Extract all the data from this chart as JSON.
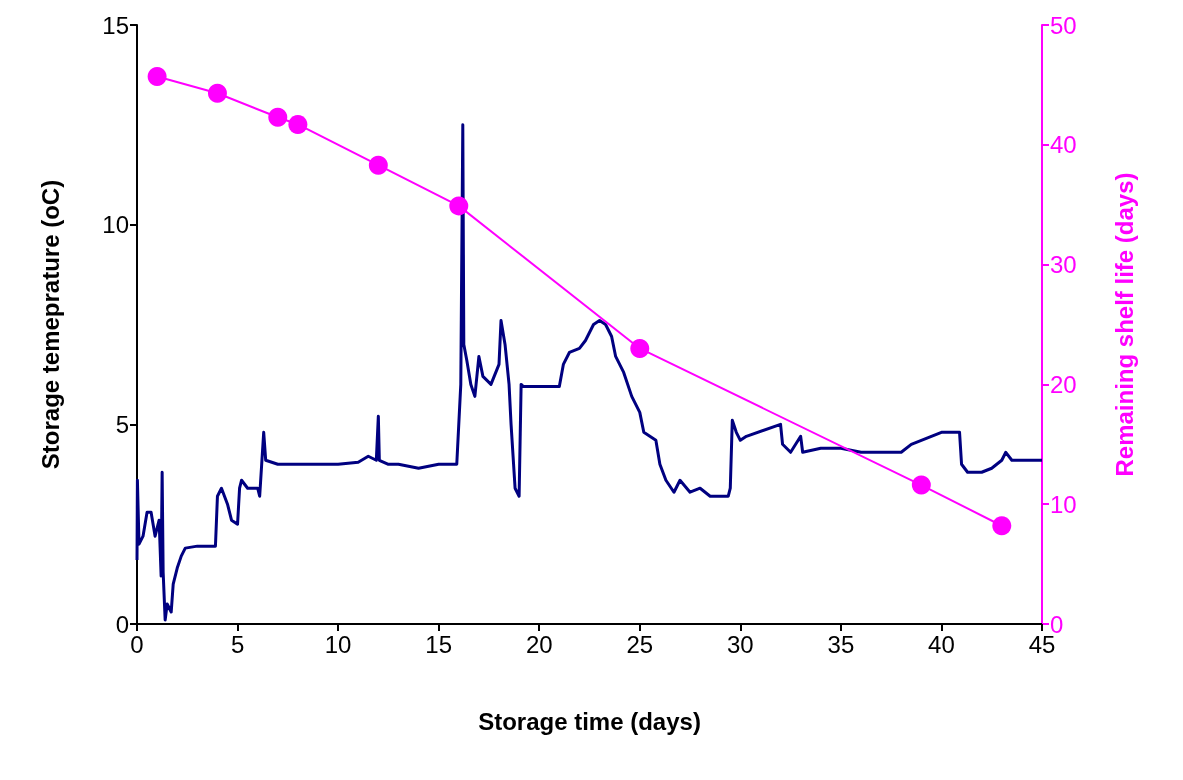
{
  "chart_data": {
    "type": "line",
    "xlabel": "Storage time (days)",
    "ylabel": "Storage temeprature (oC)",
    "y2label": "Remaining shelf life (days)",
    "xlim": [
      0,
      45
    ],
    "xticks": [
      0,
      5,
      10,
      15,
      20,
      25,
      30,
      35,
      40,
      45
    ],
    "ylim": [
      0,
      15
    ],
    "yticks": [
      0,
      5,
      10,
      15
    ],
    "y2lim": [
      0,
      50
    ],
    "y2ticks": [
      0,
      10,
      20,
      30,
      40,
      50
    ],
    "grid": false,
    "series": [
      {
        "color": "#000080",
        "marker": "none",
        "x": [
          0,
          0.02,
          0.1,
          0.3,
          0.5,
          0.7,
          0.9,
          1.1,
          1.2,
          1.25,
          1.3,
          1.4,
          1.5,
          1.7,
          1.8,
          2.0,
          2.2,
          2.4,
          3,
          3.9,
          4.0,
          4.2,
          4.5,
          4.7,
          5,
          5.1,
          5.2,
          5.5,
          6,
          6.1,
          6.2,
          6.3,
          6.4,
          7,
          10,
          11,
          11.5,
          11.9,
          12,
          12.05,
          12.5,
          13,
          14,
          15,
          15.9,
          16.1,
          16.2,
          16.25,
          16.4,
          16.6,
          16.8,
          17.0,
          17.2,
          17.6,
          18.0,
          18.1,
          18.3,
          18.5,
          18.6,
          18.8,
          19.0,
          19.1,
          19.2,
          21,
          21.2,
          21.5,
          22,
          22.3,
          22.7,
          23,
          23.3,
          23.6,
          23.8,
          24.2,
          24.6,
          25,
          25.2,
          25.8,
          26,
          26.3,
          26.7,
          27,
          27.5,
          28,
          28.5,
          29.4,
          29.5,
          29.6,
          29.8,
          30,
          30.3,
          32,
          32.1,
          32.5,
          33,
          33.1,
          34,
          35,
          36,
          38,
          38.5,
          40,
          40.9,
          41,
          41.3,
          42,
          42.5,
          43,
          43.2,
          43.5,
          45
        ],
        "values": [
          1.6,
          3.6,
          2.0,
          2.2,
          2.8,
          2.8,
          2.2,
          2.6,
          1.2,
          3.8,
          1.3,
          0.1,
          0.5,
          0.3,
          1.0,
          1.4,
          1.7,
          1.9,
          1.95,
          1.95,
          3.2,
          3.4,
          3.0,
          2.6,
          2.5,
          3.4,
          3.6,
          3.4,
          3.4,
          3.2,
          4.0,
          4.8,
          4.1,
          4.0,
          4.0,
          4.05,
          4.2,
          4.1,
          5.2,
          4.1,
          4.0,
          4.0,
          3.9,
          4.0,
          4.0,
          6.0,
          12.5,
          7.0,
          6.6,
          6.0,
          5.7,
          6.7,
          6.2,
          6.0,
          6.5,
          7.6,
          7.0,
          6.0,
          5.0,
          3.4,
          3.2,
          6.0,
          5.95,
          5.95,
          6.5,
          6.8,
          6.9,
          7.1,
          7.5,
          7.6,
          7.5,
          7.2,
          6.7,
          6.3,
          5.7,
          5.3,
          4.8,
          4.6,
          4.0,
          3.6,
          3.3,
          3.6,
          3.3,
          3.4,
          3.2,
          3.2,
          3.4,
          5.1,
          4.8,
          4.6,
          4.7,
          5.0,
          4.5,
          4.3,
          4.7,
          4.3,
          4.4,
          4.4,
          4.3,
          4.3,
          4.5,
          4.8,
          4.8,
          4.0,
          3.8,
          3.8,
          3.9,
          4.1,
          4.3,
          4.1,
          4.1
        ]
      },
      {
        "color": "#ff00ff",
        "marker": "circle",
        "axis": "y2",
        "x": [
          1,
          4,
          7,
          8,
          12,
          16,
          25,
          39,
          43
        ],
        "values": [
          45.7,
          44.3,
          42.3,
          41.7,
          38.3,
          34.9,
          23.0,
          11.6,
          8.2
        ]
      }
    ]
  }
}
